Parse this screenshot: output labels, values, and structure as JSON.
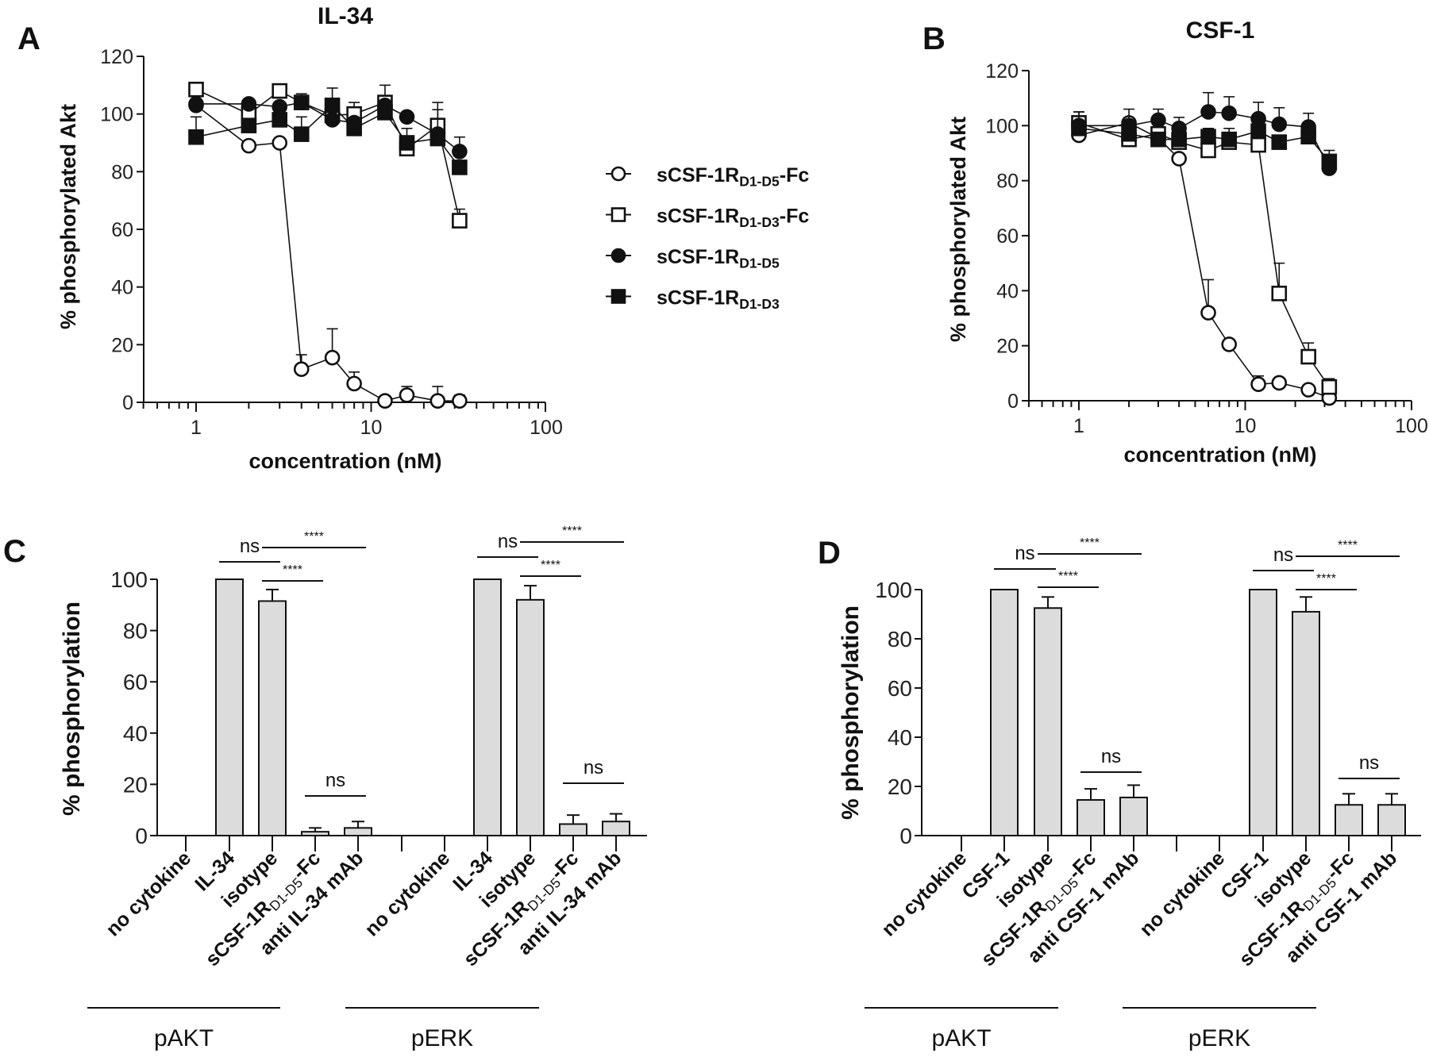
{
  "chart_data": [
    {
      "panel": "A",
      "type": "scatter",
      "title": "IL-34",
      "xlabel": "concentration (nM)",
      "ylabel": "% phosphorylated Akt",
      "xscale": "log",
      "xlim": [
        0.5,
        100
      ],
      "ylim": [
        0,
        120
      ],
      "xticks": [
        "1",
        "10",
        "100"
      ],
      "yticks": [
        "0",
        "20",
        "40",
        "60",
        "80",
        "100",
        "120"
      ],
      "grid": false,
      "x": [
        1,
        2,
        3,
        4,
        6,
        8,
        12,
        16,
        24,
        32
      ],
      "series": [
        {
          "name": "sCSF-1RD1-D5-Fc",
          "marker": "open-circle",
          "values": [
            103,
            89,
            90,
            11.5,
            15.5,
            6.5,
            0.5,
            2.5,
            0.5,
            0.5
          ],
          "error": [
            0,
            0,
            0,
            5,
            10,
            4,
            0,
            3,
            5,
            2
          ]
        },
        {
          "name": "sCSF-1RD1-D3-Fc",
          "marker": "open-square",
          "values": [
            108.5,
            100,
            108,
            104,
            99.5,
            100,
            104,
            88,
            96,
            63
          ],
          "error": [
            1,
            0,
            2,
            3,
            0,
            4,
            6,
            7,
            8,
            4
          ]
        },
        {
          "name": "sCSF-1RD1-D5",
          "marker": "filled-circle",
          "values": [
            103.5,
            103.5,
            102.5,
            104,
            98,
            97,
            103,
            99,
            93,
            87
          ],
          "error": [
            0,
            0,
            0,
            0,
            0,
            0,
            0,
            0,
            0,
            5
          ]
        },
        {
          "name": "sCSF-1RD1-D3",
          "marker": "filled-square",
          "values": [
            92,
            96,
            98,
            93,
            103,
            95,
            100.5,
            90,
            91.5,
            81.5
          ],
          "error": [
            7,
            0,
            0,
            6,
            6,
            0,
            0,
            0,
            10,
            0
          ]
        }
      ]
    },
    {
      "panel": "B",
      "type": "scatter",
      "title": "CSF-1",
      "xlabel": "concentration (nM)",
      "ylabel": "% phosphorylated Akt",
      "xscale": "log",
      "xlim": [
        0.5,
        100
      ],
      "ylim": [
        0,
        120
      ],
      "xticks": [
        "1",
        "10",
        "100"
      ],
      "yticks": [
        "0",
        "20",
        "40",
        "60",
        "80",
        "100",
        "120"
      ],
      "grid": false,
      "x": [
        1,
        2,
        3,
        4,
        6,
        8,
        12,
        16,
        24,
        32
      ],
      "series": [
        {
          "name": "sCSF-1RD1-D5-Fc",
          "marker": "open-circle",
          "values": [
            96.5,
            101,
            95.5,
            88,
            32,
            20.5,
            6,
            6.5,
            4,
            1
          ],
          "error": [
            0,
            0,
            0,
            0,
            12,
            0,
            3,
            0,
            0,
            0
          ]
        },
        {
          "name": "sCSF-1RD1-D3-Fc",
          "marker": "open-square",
          "values": [
            101,
            95,
            97,
            94,
            91,
            94,
            93,
            39,
            16,
            5
          ],
          "error": [
            4,
            0,
            0,
            0,
            0,
            0,
            0,
            11,
            5,
            3
          ]
        },
        {
          "name": "sCSF-1RD1-D5",
          "marker": "filled-circle",
          "values": [
            100,
            100,
            102,
            99,
            105,
            104.5,
            102.5,
            100.5,
            99.5,
            84.5
          ],
          "error": [
            5,
            6,
            4,
            4,
            7,
            6,
            6,
            6,
            5,
            0
          ]
        },
        {
          "name": "sCSF-1RD1-D3",
          "marker": "filled-square",
          "values": [
            99,
            97,
            95,
            95,
            96,
            95,
            98,
            94,
            96,
            87
          ],
          "error": [
            0,
            0,
            0,
            0,
            3,
            4,
            0,
            0,
            0,
            4
          ]
        }
      ]
    },
    {
      "panel": "C",
      "type": "bar",
      "ylabel": "% phosphorylation",
      "ylim": [
        0,
        100
      ],
      "yticks": [
        "0",
        "20",
        "40",
        "60",
        "80",
        "100"
      ],
      "grid": false,
      "bar_color": "#dcdcdc",
      "categories": [
        {
          "text": "no cytokine"
        },
        {
          "text": "IL-34"
        },
        {
          "text": "isotype"
        },
        {
          "text": "sCSF-1R",
          "sub": "D1-D5",
          "suffix": "-Fc"
        },
        {
          "text": "anti IL-34 mAb"
        },
        {
          "text": "no cytokine"
        },
        {
          "text": "IL-34"
        },
        {
          "text": "isotype"
        },
        {
          "text": "sCSF-1R",
          "sub": "D1-D5",
          "suffix": "-Fc"
        },
        {
          "text": "anti IL-34 mAb"
        }
      ],
      "values": [
        0,
        100,
        91.5,
        1.5,
        3,
        0,
        100,
        92,
        4.5,
        5.5
      ],
      "error": [
        0,
        0,
        4.5,
        1.5,
        2.5,
        0,
        0,
        5.5,
        3.5,
        3
      ],
      "groups": [
        "pAKT",
        "pERK"
      ],
      "brackets": [
        {
          "from": 1,
          "to": 2,
          "label": "ns"
        },
        {
          "from": 2,
          "to": 4,
          "label": "****"
        },
        {
          "from": 2,
          "to": 3,
          "label": "****"
        },
        {
          "from": 3,
          "to": 4,
          "label": "ns"
        },
        {
          "from": 6,
          "to": 7,
          "label": "ns"
        },
        {
          "from": 7,
          "to": 9,
          "label": "****"
        },
        {
          "from": 7,
          "to": 8,
          "label": "****"
        },
        {
          "from": 8,
          "to": 9,
          "label": "ns"
        }
      ]
    },
    {
      "panel": "D",
      "type": "bar",
      "ylabel": "% phosphorylation",
      "ylim": [
        0,
        100
      ],
      "yticks": [
        "0",
        "20",
        "40",
        "60",
        "80",
        "100"
      ],
      "grid": false,
      "bar_color": "#dcdcdc",
      "categories": [
        {
          "text": "no cytokine"
        },
        {
          "text": "CSF-1"
        },
        {
          "text": "isotype"
        },
        {
          "text": "sCSF-1R",
          "sub": "D1-D5",
          "suffix": "-Fc"
        },
        {
          "text": "anti CSF-1 mAb"
        },
        {
          "text": "no cytokine"
        },
        {
          "text": "CSF-1"
        },
        {
          "text": "isotype"
        },
        {
          "text": "sCSF-1R",
          "sub": "D1-D5",
          "suffix": "-Fc"
        },
        {
          "text": "anti CSF-1 mAb"
        }
      ],
      "values": [
        0,
        100,
        92.5,
        14.5,
        15.5,
        0,
        100,
        91,
        12.5,
        12.5
      ],
      "error": [
        0,
        0,
        4.5,
        4.5,
        5,
        0,
        0,
        6,
        4.5,
        4.5
      ],
      "groups": [
        "pAKT",
        "pERK"
      ],
      "brackets": [
        {
          "from": 1,
          "to": 2,
          "label": "ns"
        },
        {
          "from": 2,
          "to": 4,
          "label": "****"
        },
        {
          "from": 2,
          "to": 3,
          "label": "****"
        },
        {
          "from": 3,
          "to": 4,
          "label": "ns"
        },
        {
          "from": 6,
          "to": 7,
          "label": "ns"
        },
        {
          "from": 7,
          "to": 9,
          "label": "****"
        },
        {
          "from": 7,
          "to": 8,
          "label": "****"
        },
        {
          "from": 8,
          "to": 9,
          "label": "ns"
        }
      ]
    }
  ],
  "legend": {
    "placement": "between panels A and B",
    "entries": [
      {
        "marker": "open-circle",
        "base": "sCSF-1R",
        "sub": "D1-D5",
        "suffix": "-Fc"
      },
      {
        "marker": "open-square",
        "base": "sCSF-1R",
        "sub": "D1-D3",
        "suffix": "-Fc"
      },
      {
        "marker": "filled-circle",
        "base": "sCSF-1R",
        "sub": "D1-D5",
        "suffix": ""
      },
      {
        "marker": "filled-square",
        "base": "sCSF-1R",
        "sub": "D1-D3",
        "suffix": ""
      }
    ]
  },
  "panel_letters": [
    "A",
    "B",
    "C",
    "D"
  ],
  "colors": {
    "ink": "#111111",
    "bar_fill": "#dcdcdc"
  }
}
